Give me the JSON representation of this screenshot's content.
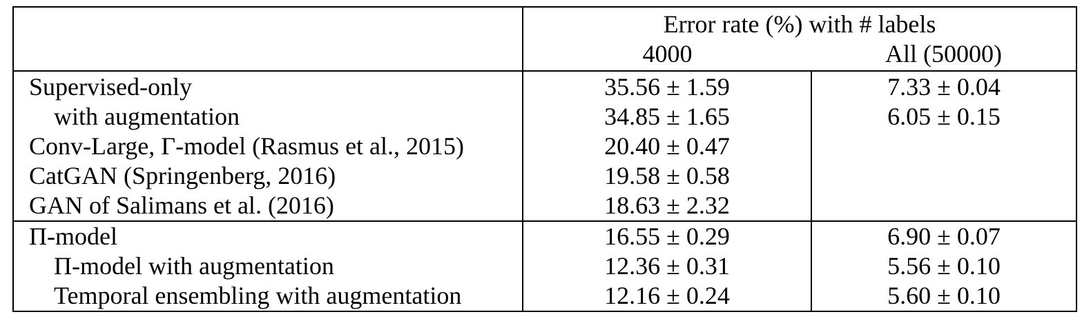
{
  "table": {
    "header": {
      "group_title": "Error rate (%) with # labels",
      "col_4000": "4000",
      "col_all": "All (50000)"
    },
    "rows": [
      {
        "method": "Supervised-only",
        "v4000": "35.56 ± 1.59",
        "vall": "7.33 ± 0.04"
      },
      {
        "method": "with augmentation",
        "v4000": "34.85 ± 1.65",
        "vall": "6.05 ± 0.15"
      },
      {
        "method": "Conv-Large, Γ-model (Rasmus et al., 2015)",
        "v4000": "20.40 ± 0.47",
        "vall": ""
      },
      {
        "method": "CatGAN (Springenberg, 2016)",
        "v4000": "19.58 ± 0.58",
        "vall": ""
      },
      {
        "method": "GAN of Salimans et al. (2016)",
        "v4000": "18.63 ± 2.32",
        "vall": ""
      },
      {
        "method": "Π-model",
        "v4000": "16.55 ± 0.29",
        "vall": "6.90 ± 0.07"
      },
      {
        "method": "Π-model with augmentation",
        "v4000": "12.36 ± 0.31",
        "vall": "5.56 ± 0.10"
      },
      {
        "method": "Temporal ensembling with augmentation",
        "v4000": "12.16 ± 0.24",
        "vall": "5.60 ± 0.10"
      }
    ]
  }
}
